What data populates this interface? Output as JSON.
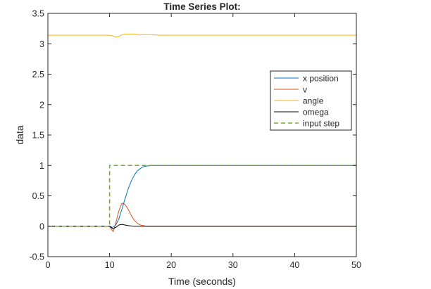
{
  "chart_data": {
    "type": "line",
    "title": "Time Series Plot:",
    "xlabel": "Time (seconds)",
    "ylabel": "data",
    "xlim": [
      0,
      50
    ],
    "ylim": [
      -0.5,
      3.5
    ],
    "xticks": [
      0,
      10,
      20,
      30,
      40,
      50
    ],
    "yticks": [
      -0.5,
      0,
      0.5,
      1,
      1.5,
      2,
      2.5,
      3,
      3.5
    ],
    "xtick_labels": [
      "0",
      "10",
      "20",
      "30",
      "40",
      "50"
    ],
    "ytick_labels": [
      "-0.5",
      "0",
      "0.5",
      "1",
      "1.5",
      "2",
      "2.5",
      "3",
      "3.5"
    ],
    "grid": false,
    "legend_position": "top-right",
    "series": [
      {
        "name": "x position",
        "color": "#0072bd",
        "dash": "solid",
        "x": [
          0,
          10,
          10.5,
          11,
          11.5,
          12,
          12.5,
          13,
          13.5,
          14,
          14.5,
          15,
          15.5,
          16,
          17,
          18,
          50
        ],
        "y": [
          0,
          0,
          -0.02,
          0.02,
          0.12,
          0.28,
          0.45,
          0.61,
          0.74,
          0.84,
          0.91,
          0.95,
          0.98,
          0.99,
          1.0,
          1.0,
          1.0
        ]
      },
      {
        "name": "v",
        "color": "#d95319",
        "dash": "solid",
        "x": [
          0,
          10,
          10.3,
          10.6,
          11,
          11.5,
          12,
          12.5,
          13,
          13.5,
          14,
          14.5,
          15,
          15.5,
          16,
          17,
          50
        ],
        "y": [
          0,
          0,
          -0.05,
          -0.09,
          0.05,
          0.25,
          0.38,
          0.36,
          0.28,
          0.18,
          0.1,
          0.05,
          0.02,
          0.01,
          0.0,
          0.0,
          0.0
        ]
      },
      {
        "name": "angle",
        "color": "#edb120",
        "dash": "solid",
        "x": [
          0,
          10,
          10.5,
          11,
          11.5,
          12,
          12.5,
          13,
          14,
          15,
          16,
          17,
          18,
          19,
          20,
          50
        ],
        "y": [
          3.14,
          3.14,
          3.13,
          3.11,
          3.12,
          3.15,
          3.16,
          3.16,
          3.16,
          3.15,
          3.15,
          3.15,
          3.14,
          3.14,
          3.14,
          3.14
        ]
      },
      {
        "name": "omega",
        "color": "#000000",
        "dash": "solid",
        "x": [
          0,
          10,
          10.5,
          11,
          11.5,
          12,
          12.5,
          13,
          14,
          15,
          16,
          50
        ],
        "y": [
          0,
          0,
          -0.04,
          -0.02,
          0.02,
          0.03,
          0.02,
          0.01,
          0.0,
          0.0,
          0.0,
          0.0
        ]
      },
      {
        "name": "input step",
        "color": "#77ac30",
        "dash": "dashed",
        "x": [
          0,
          10,
          10,
          50
        ],
        "y": [
          0,
          0,
          1,
          1
        ]
      }
    ]
  }
}
